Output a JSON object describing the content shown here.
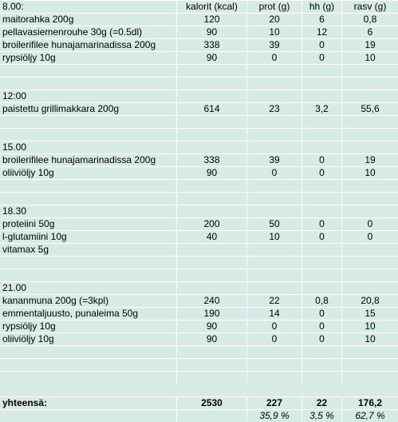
{
  "header": {
    "c0": "8.00:",
    "c1": "kalorit (kcal)",
    "c2": "prot (g)",
    "c3": "hh (g)",
    "c4": "rasv (g)"
  },
  "rows": [
    {
      "c0": "maitorahka 200g",
      "c1": "120",
      "c2": "20",
      "c3": "6",
      "c4": "0,8"
    },
    {
      "c0": "pellavasiemenrouhe 30g (=0.5dl)",
      "c1": "90",
      "c2": "10",
      "c3": "12",
      "c4": "6"
    },
    {
      "c0": "broilerifilee hunajamarinadissa 200g",
      "c1": "338",
      "c2": "39",
      "c3": "0",
      "c4": "19"
    },
    {
      "c0": "rypsiöljy 10g",
      "c1": "90",
      "c2": "0",
      "c3": "0",
      "c4": "10"
    },
    {
      "c0": "",
      "c1": "",
      "c2": "",
      "c3": "",
      "c4": ""
    },
    {
      "c0": "",
      "c1": "",
      "c2": "",
      "c3": "",
      "c4": ""
    },
    {
      "c0": "12:00",
      "c1": "",
      "c2": "",
      "c3": "",
      "c4": ""
    },
    {
      "c0": "paistettu grillimakkara 200g",
      "c1": "614",
      "c2": "23",
      "c3": "3,2",
      "c4": "55,6"
    },
    {
      "c0": "",
      "c1": "",
      "c2": "",
      "c3": "",
      "c4": ""
    },
    {
      "c0": "",
      "c1": "",
      "c2": "",
      "c3": "",
      "c4": ""
    },
    {
      "c0": "15.00",
      "c1": "",
      "c2": "",
      "c3": "",
      "c4": ""
    },
    {
      "c0": "broilerifilee hunajamarinadissa 200g",
      "c1": "338",
      "c2": "39",
      "c3": "0",
      "c4": "19"
    },
    {
      "c0": "oliiviöljy 10g",
      "c1": "90",
      "c2": "0",
      "c3": "0",
      "c4": "10"
    },
    {
      "c0": "",
      "c1": "",
      "c2": "",
      "c3": "",
      "c4": ""
    },
    {
      "c0": "",
      "c1": "",
      "c2": "",
      "c3": "",
      "c4": ""
    },
    {
      "c0": "18.30",
      "c1": "",
      "c2": "",
      "c3": "",
      "c4": ""
    },
    {
      "c0": "proteiini 50g",
      "c1": "200",
      "c2": "50",
      "c3": "0",
      "c4": "0"
    },
    {
      "c0": "l-glutamiini 10g",
      "c1": "40",
      "c2": "10",
      "c3": "0",
      "c4": "0"
    },
    {
      "c0": "vitamax 5g",
      "c1": "",
      "c2": "",
      "c3": "",
      "c4": ""
    },
    {
      "c0": "",
      "c1": "",
      "c2": "",
      "c3": "",
      "c4": ""
    },
    {
      "c0": "",
      "c1": "",
      "c2": "",
      "c3": "",
      "c4": ""
    },
    {
      "c0": "21.00",
      "c1": "",
      "c2": "",
      "c3": "",
      "c4": ""
    },
    {
      "c0": "kananmuna 200g (=3kpl)",
      "c1": "240",
      "c2": "22",
      "c3": "0,8",
      "c4": "20,8"
    },
    {
      "c0": "emmentaljuusto, punaleima 50g",
      "c1": "190",
      "c2": "14",
      "c3": "0",
      "c4": "15"
    },
    {
      "c0": "rypsiöljy 10g",
      "c1": "90",
      "c2": "0",
      "c3": "0",
      "c4": "10"
    },
    {
      "c0": "oliiviöljy 10g",
      "c1": "90",
      "c2": "0",
      "c3": "0",
      "c4": "10"
    },
    {
      "c0": "",
      "c1": "",
      "c2": "",
      "c3": "",
      "c4": ""
    },
    {
      "c0": "",
      "c1": "",
      "c2": "",
      "c3": "",
      "c4": ""
    },
    {
      "c0": "",
      "c1": "",
      "c2": "",
      "c3": "",
      "c4": ""
    }
  ],
  "totals": {
    "c0": "yhteensä:",
    "c1": "2530",
    "c2": "227",
    "c3": "22",
    "c4": "176,2"
  },
  "percentages": {
    "c0": "",
    "c1": "",
    "c2": "35,9 %",
    "c3": "3,5 %",
    "c4": "62,7 %"
  },
  "colors": {
    "background": "#d6ebe5",
    "gridline": "#ffffff"
  }
}
